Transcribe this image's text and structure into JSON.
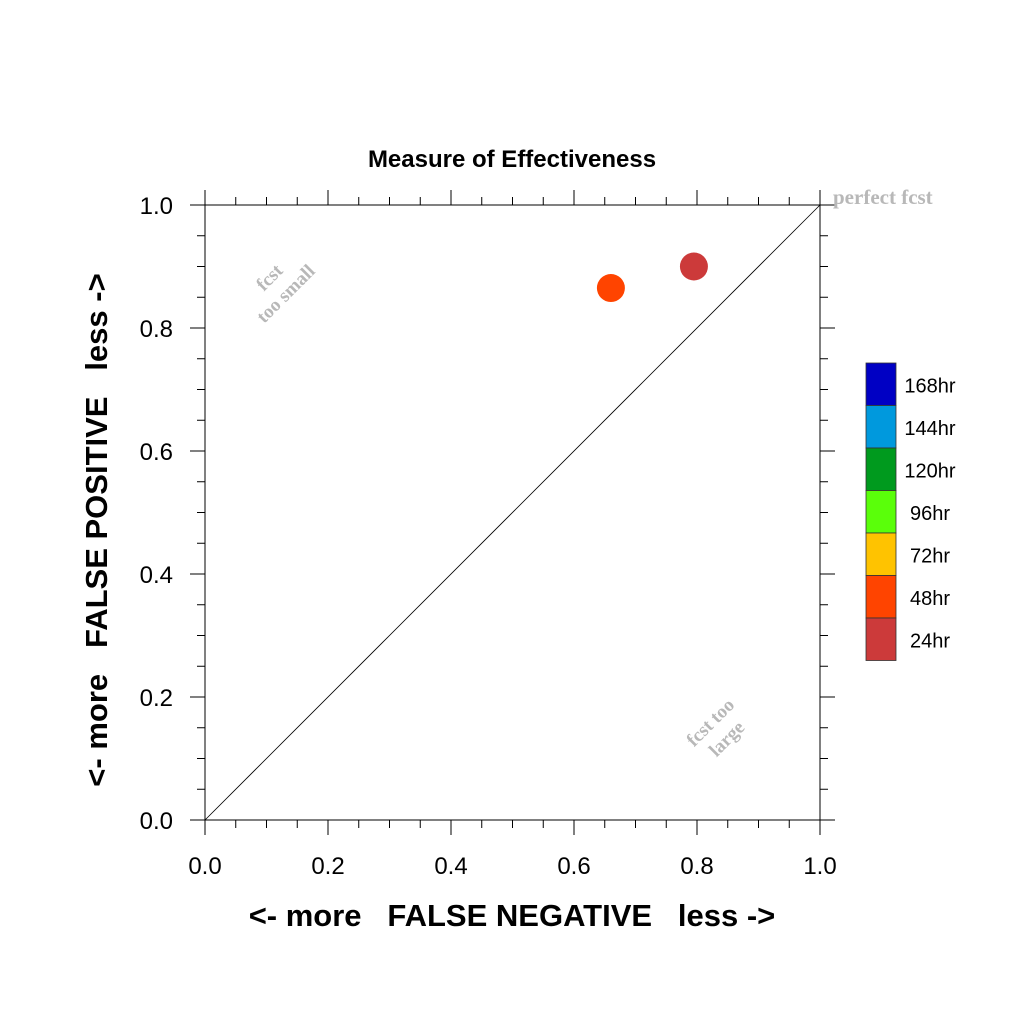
{
  "chart_data": {
    "type": "scatter",
    "title": "Measure of Effectiveness",
    "xlabel": "<- more   FALSE NEGATIVE   less ->",
    "ylabel": "<- more   FALSE POSITIVE   less ->",
    "xlim": [
      0.0,
      1.0
    ],
    "ylim": [
      0.0,
      1.0
    ],
    "xticks": [
      "0.0",
      "0.2",
      "0.4",
      "0.6",
      "0.8",
      "1.0"
    ],
    "yticks": [
      "0.0",
      "0.2",
      "0.4",
      "0.6",
      "0.8",
      "1.0"
    ],
    "grid": false,
    "points": [
      {
        "label": "48hr",
        "x": 0.66,
        "y": 0.865,
        "color": "#ff4400"
      },
      {
        "label": "24hr",
        "x": 0.795,
        "y": 0.9,
        "color": "#cc3a3a"
      }
    ],
    "reference_line": {
      "x": [
        0.0,
        1.0
      ],
      "y": [
        0.0,
        1.0
      ]
    },
    "annotations": {
      "perfect": "perfect fcst",
      "too_small_line1": "fcst",
      "too_small_line2": "too small",
      "too_large_line1": "fcst too",
      "too_large_line2": "large"
    },
    "legend": {
      "placement": "right",
      "entries": [
        {
          "label": "168hr",
          "color": "#0000c4"
        },
        {
          "label": "144hr",
          "color": "#0099dd"
        },
        {
          "label": "120hr",
          "color": "#009a1e"
        },
        {
          "label": "96hr",
          "color": "#5aff0a"
        },
        {
          "label": "72hr",
          "color": "#ffc300"
        },
        {
          "label": "48hr",
          "color": "#ff4400"
        },
        {
          "label": "24hr",
          "color": "#cc3a3a"
        }
      ]
    }
  }
}
